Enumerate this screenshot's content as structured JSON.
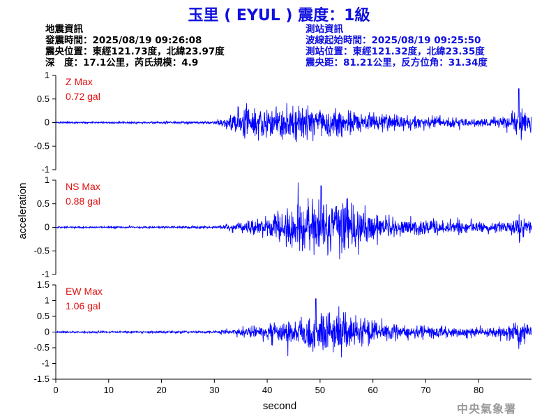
{
  "header": {
    "title": "玉里 ( EYUL ) 震度：1級"
  },
  "quake_info": [
    "地震資訊",
    "發震時間：2025/08/19 09:26:08",
    "震央位置：東經121.73度，北緯23.97度",
    "深　度：17.1公里，芮氏規模：4.9"
  ],
  "station_info": [
    "測站資訊",
    "波線起始時間：2025/08/19 09:25:50",
    "測站位置：東經121.32度，北緯23.35度",
    "震央距：81.21公里，反方位角：31.34度"
  ],
  "agency": "中央氣象署",
  "colors": {
    "title": "#1010e0",
    "trace": "#0000ff",
    "max_label": "#e01010",
    "station_info": "#1010e0"
  },
  "chart_data": {
    "type": "line",
    "xlabel": "second",
    "ylabel": "acceleration",
    "xlim": [
      0,
      90
    ],
    "x_ticks": [
      "0",
      "10",
      "20",
      "30",
      "40",
      "50",
      "60",
      "70",
      "80"
    ],
    "series": [
      {
        "name": "Z Max",
        "max_label": "Z Max",
        "max_value": "0.72 gal",
        "ylim": [
          -1,
          1
        ],
        "y_ticks": [
          "1",
          "0.5",
          "0",
          "-0.5",
          "-1"
        ],
        "y_tick_values": [
          1,
          0.5,
          0,
          -0.5,
          -1
        ],
        "envelope": [
          [
            0,
            0.02
          ],
          [
            30,
            0.03
          ],
          [
            33,
            0.2
          ],
          [
            35,
            0.4
          ],
          [
            40,
            0.35
          ],
          [
            45,
            0.45
          ],
          [
            50,
            0.38
          ],
          [
            55,
            0.3
          ],
          [
            60,
            0.25
          ],
          [
            70,
            0.15
          ],
          [
            80,
            0.1
          ],
          [
            85,
            0.12
          ],
          [
            88,
            0.45
          ],
          [
            90,
            0.2
          ]
        ],
        "peak": {
          "x": 87.6,
          "y": 0.72
        }
      },
      {
        "name": "NS Max",
        "max_label": "NS Max",
        "max_value": "0.88 gal",
        "ylim": [
          -1,
          1
        ],
        "y_ticks": [
          "1",
          "0.5",
          "0",
          "-0.5",
          "-1"
        ],
        "y_tick_values": [
          1,
          0.5,
          0,
          -0.5,
          -1
        ],
        "envelope": [
          [
            0,
            0.02
          ],
          [
            30,
            0.03
          ],
          [
            34,
            0.12
          ],
          [
            40,
            0.25
          ],
          [
            45,
            0.55
          ],
          [
            50,
            0.7
          ],
          [
            55,
            0.65
          ],
          [
            60,
            0.4
          ],
          [
            65,
            0.2
          ],
          [
            70,
            0.18
          ],
          [
            80,
            0.15
          ],
          [
            85,
            0.12
          ],
          [
            88,
            0.3
          ],
          [
            90,
            0.15
          ]
        ],
        "peak": {
          "x": 50.2,
          "y": 0.88
        }
      },
      {
        "name": "EW Max",
        "max_label": "EW Max",
        "max_value": "1.06 gal",
        "ylim": [
          -1.5,
          1.5
        ],
        "y_ticks": [
          "1.5",
          "1",
          "0.5",
          "0",
          "-0.5",
          "-1",
          "-1.5"
        ],
        "y_tick_values": [
          1.5,
          1,
          0.5,
          0,
          -0.5,
          -1,
          -1.5
        ],
        "envelope": [
          [
            0,
            0.03
          ],
          [
            30,
            0.05
          ],
          [
            34,
            0.15
          ],
          [
            40,
            0.3
          ],
          [
            45,
            0.45
          ],
          [
            50,
            0.8
          ],
          [
            55,
            0.75
          ],
          [
            60,
            0.45
          ],
          [
            65,
            0.3
          ],
          [
            70,
            0.22
          ],
          [
            80,
            0.18
          ],
          [
            85,
            0.2
          ],
          [
            88,
            0.5
          ],
          [
            90,
            0.2
          ]
        ],
        "peak": {
          "x": 49.2,
          "y": 1.06
        }
      }
    ]
  }
}
